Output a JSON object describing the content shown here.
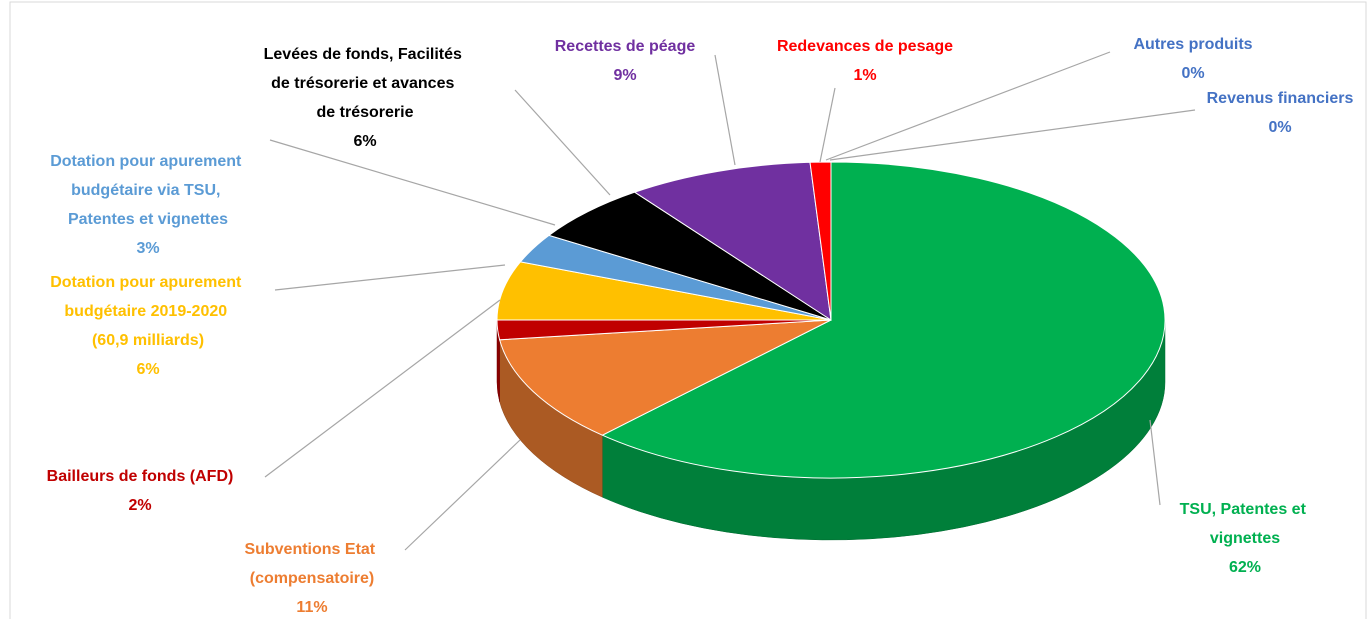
{
  "chart_data": {
    "type": "pie3d",
    "categories": [
      "TSU, Patentes et vignettes",
      "Subventions Etat (compensatoire)",
      "Bailleurs de fonds (AFD)",
      "Dotation pour apurement budgétaire 2019-2020 (60,9 milliards)",
      "Dotation pour apurement budgétaire via TSU, Patentes et vignettes",
      "Levées de fonds, Facilités de trésorerie et avances de trésorerie",
      "Recettes de péage",
      "Redevances de pesage",
      "Autres produits",
      "Revenus financiers"
    ],
    "values": [
      62,
      11,
      2,
      6,
      3,
      6,
      9,
      1,
      0,
      0
    ],
    "value_labels": [
      "62%",
      "11%",
      "2%",
      "6%",
      "3%",
      "6%",
      "9%",
      "1%",
      "0%",
      "0%"
    ],
    "colors": [
      "#00b050",
      "#ed7d31",
      "#c00000",
      "#ffc000",
      "#5b9bd5",
      "#000000",
      "#7030a0",
      "#ff0000",
      "#4472c4",
      "#4472c4"
    ]
  }
}
